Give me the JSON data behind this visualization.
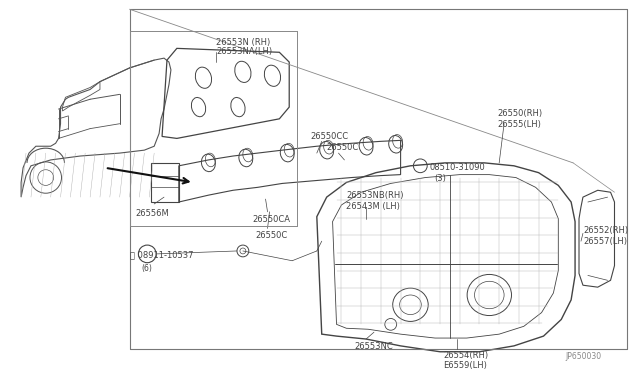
{
  "bg_color": "#ffffff",
  "line_color": "#444444",
  "text_color": "#444444",
  "fig_width": 6.4,
  "fig_height": 3.72,
  "dpi": 100,
  "diagram_code": "JP650030",
  "labels": {
    "plate_rh": "26553N (RH)",
    "plate_lh": "26553NA(LH)",
    "lamp_rh": "26550(RH)",
    "lamp_lh": "26555(LH)",
    "cc": "26550CC",
    "c1": "26550C",
    "bolt": "08510-31090",
    "bolt_qty": "(3)",
    "nb_rh": "26553NB(RH)",
    "m_lh": "26543M (LH)",
    "socket": "26556M",
    "ca": "26550CA",
    "c2": "26550C",
    "side_rh": "26552(RH)",
    "side_lh": "26557(LH)",
    "nc": "26553NC",
    "bot_rh": "26554(RH)",
    "bot_lh": "E6559(LH)",
    "nut": "Ⓝ 08911-10537",
    "nut_qty": "(6)"
  }
}
